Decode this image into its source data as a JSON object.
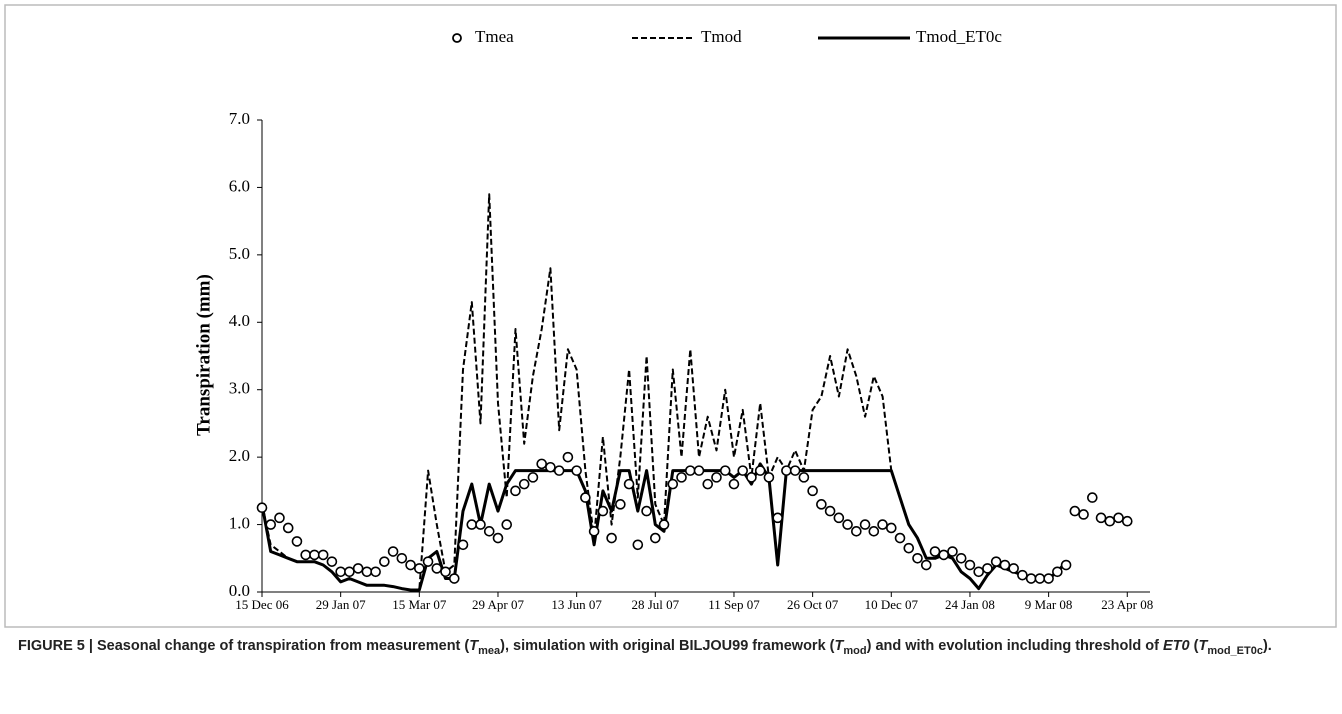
{
  "chart_data": {
    "type": "line",
    "y_label": "Transpiration (mm)",
    "x": [
      "2006-12-15",
      "2006-12-20",
      "2006-12-25",
      "2006-12-30",
      "2007-01-04",
      "2007-01-09",
      "2007-01-14",
      "2007-01-19",
      "2007-01-24",
      "2007-01-29",
      "2007-02-03",
      "2007-02-08",
      "2007-02-13",
      "2007-02-18",
      "2007-02-23",
      "2007-02-28",
      "2007-03-05",
      "2007-03-10",
      "2007-03-15",
      "2007-03-20",
      "2007-03-25",
      "2007-03-30",
      "2007-04-04",
      "2007-04-09",
      "2007-04-14",
      "2007-04-19",
      "2007-04-24",
      "2007-04-29",
      "2007-05-04",
      "2007-05-09",
      "2007-05-14",
      "2007-05-19",
      "2007-05-24",
      "2007-05-29",
      "2007-06-03",
      "2007-06-08",
      "2007-06-13",
      "2007-06-18",
      "2007-06-23",
      "2007-06-28",
      "2007-07-03",
      "2007-07-08",
      "2007-07-13",
      "2007-07-18",
      "2007-07-23",
      "2007-07-28",
      "2007-08-02",
      "2007-08-07",
      "2007-08-12",
      "2007-08-17",
      "2007-08-22",
      "2007-08-27",
      "2007-09-01",
      "2007-09-06",
      "2007-09-11",
      "2007-09-16",
      "2007-09-21",
      "2007-09-26",
      "2007-10-01",
      "2007-10-06",
      "2007-10-11",
      "2007-10-16",
      "2007-10-21",
      "2007-10-26",
      "2007-10-31",
      "2007-11-05",
      "2007-11-10",
      "2007-11-15",
      "2007-11-20",
      "2007-11-25",
      "2007-11-30",
      "2007-12-05",
      "2007-12-10",
      "2007-12-15",
      "2007-12-20",
      "2007-12-25",
      "2007-12-30",
      "2008-01-04",
      "2008-01-09",
      "2008-01-14",
      "2008-01-19",
      "2008-01-24",
      "2008-01-29",
      "2008-02-03",
      "2008-02-08",
      "2008-02-13",
      "2008-02-18",
      "2008-02-23",
      "2008-02-28",
      "2008-03-04",
      "2008-03-09",
      "2008-03-14",
      "2008-03-19",
      "2008-03-24",
      "2008-03-29",
      "2008-04-03",
      "2008-04-08",
      "2008-04-13",
      "2008-04-18",
      "2008-04-23"
    ],
    "series": [
      {
        "name": "Tmea",
        "color": "#000000",
        "marker": "circle",
        "line": "none",
        "values": [
          1.25,
          1.0,
          1.1,
          0.95,
          0.75,
          0.55,
          0.55,
          0.55,
          0.45,
          0.3,
          0.3,
          0.35,
          0.3,
          0.3,
          0.45,
          0.6,
          0.5,
          0.4,
          0.35,
          0.45,
          0.35,
          0.3,
          0.2,
          0.7,
          1.0,
          1.0,
          0.9,
          0.8,
          1.0,
          1.5,
          1.6,
          1.7,
          1.9,
          1.85,
          1.8,
          2.0,
          1.8,
          1.4,
          0.9,
          1.2,
          0.8,
          1.3,
          1.6,
          0.7,
          1.2,
          0.8,
          1.0,
          1.6,
          1.7,
          1.8,
          1.8,
          1.6,
          1.7,
          1.8,
          1.6,
          1.8,
          1.7,
          1.8,
          1.7,
          1.1,
          1.8,
          1.8,
          1.7,
          1.5,
          1.3,
          1.2,
          1.1,
          1.0,
          0.9,
          1.0,
          0.9,
          1.0,
          0.95,
          0.8,
          0.65,
          0.5,
          0.4,
          0.6,
          0.55,
          0.6,
          0.5,
          0.4,
          0.3,
          0.35,
          0.45,
          0.4,
          0.35,
          0.25,
          0.2,
          0.2,
          0.2,
          0.3,
          0.4,
          1.2,
          1.15,
          1.4,
          1.1,
          1.05,
          1.1,
          1.05
        ]
      },
      {
        "name": "Tmod",
        "color": "#000000",
        "marker": "none",
        "line": "dashed",
        "values": [
          1.3,
          0.7,
          0.6,
          0.5,
          0.45,
          0.45,
          0.45,
          0.4,
          0.3,
          0.15,
          0.2,
          0.15,
          0.1,
          0.1,
          0.1,
          0.08,
          0.05,
          0.03,
          0.03,
          1.8,
          1.0,
          0.3,
          0.4,
          3.3,
          4.3,
          2.5,
          5.9,
          2.8,
          1.4,
          3.9,
          2.2,
          3.2,
          3.9,
          4.8,
          2.4,
          3.6,
          3.3,
          1.8,
          0.8,
          2.3,
          1.0,
          2.0,
          3.3,
          1.4,
          3.5,
          1.3,
          1.0,
          3.3,
          2.0,
          3.6,
          2.0,
          2.6,
          2.1,
          3.0,
          2.0,
          2.7,
          1.7,
          2.8,
          1.7,
          2.0,
          1.8,
          2.1,
          1.8,
          2.7,
          2.9,
          3.5,
          2.9,
          3.6,
          3.2,
          2.6,
          3.2,
          2.9,
          1.8,
          1.4,
          1.0,
          0.8,
          0.5,
          0.5,
          0.55,
          0.5,
          0.3,
          0.2,
          0.05,
          0.25,
          0.4,
          0.35,
          0.3,
          0.25,
          0.2,
          0.2,
          0.2,
          0.3,
          0.45,
          null,
          null,
          null,
          null,
          null,
          null,
          null
        ]
      },
      {
        "name": "Tmod_ET0c",
        "color": "#000000",
        "marker": "none",
        "line": "solid",
        "values": [
          1.3,
          0.6,
          0.55,
          0.5,
          0.45,
          0.45,
          0.45,
          0.4,
          0.3,
          0.15,
          0.2,
          0.15,
          0.1,
          0.1,
          0.1,
          0.08,
          0.05,
          0.03,
          0.03,
          0.5,
          0.6,
          0.2,
          0.2,
          1.2,
          1.6,
          1.0,
          1.6,
          1.2,
          1.6,
          1.8,
          1.8,
          1.8,
          1.8,
          1.8,
          1.8,
          1.8,
          1.8,
          1.5,
          0.7,
          1.5,
          1.2,
          1.8,
          1.8,
          1.2,
          1.8,
          1.0,
          0.9,
          1.8,
          1.8,
          1.8,
          1.8,
          1.8,
          1.8,
          1.8,
          1.7,
          1.8,
          1.6,
          1.9,
          1.7,
          0.4,
          1.8,
          1.8,
          1.8,
          1.8,
          1.8,
          1.8,
          1.8,
          1.8,
          1.8,
          1.8,
          1.8,
          1.8,
          1.8,
          1.4,
          1.0,
          0.8,
          0.5,
          0.5,
          0.55,
          0.5,
          0.3,
          0.2,
          0.05,
          0.25,
          0.4,
          0.35,
          0.3,
          0.25,
          0.2,
          0.2,
          0.2,
          0.3,
          0.45,
          null,
          null,
          null,
          null,
          null,
          null,
          null
        ]
      }
    ],
    "xlim": [
      "2006-12-15",
      "2008-05-06"
    ],
    "xticks": [
      {
        "value": "2006-12-15",
        "label": "15 Dec 06"
      },
      {
        "value": "2007-01-29",
        "label": "29 Jan 07"
      },
      {
        "value": "2007-03-15",
        "label": "15 Mar 07"
      },
      {
        "value": "2007-04-29",
        "label": "29 Apr 07"
      },
      {
        "value": "2007-06-13",
        "label": "13 Jun 07"
      },
      {
        "value": "2007-07-28",
        "label": "28 Jul 07"
      },
      {
        "value": "2007-09-11",
        "label": "11 Sep 07"
      },
      {
        "value": "2007-10-26",
        "label": "26 Oct 07"
      },
      {
        "value": "2007-12-10",
        "label": "10 Dec 07"
      },
      {
        "value": "2008-01-24",
        "label": "24 Jan 08"
      },
      {
        "value": "2008-03-09",
        "label": "9 Mar 08"
      },
      {
        "value": "2008-04-23",
        "label": "23 Apr 08"
      }
    ],
    "ylim": [
      0,
      7
    ],
    "yticks": [
      {
        "value": 0,
        "label": "0.0"
      },
      {
        "value": 1,
        "label": "1.0"
      },
      {
        "value": 2,
        "label": "2.0"
      },
      {
        "value": 3,
        "label": "3.0"
      },
      {
        "value": 4,
        "label": "4.0"
      },
      {
        "value": 5,
        "label": "5.0"
      },
      {
        "value": 6,
        "label": "6.0"
      },
      {
        "value": 7,
        "label": "7.0"
      }
    ],
    "grid": false,
    "legend": "top"
  },
  "caption": [
    "FIGURE 5 | Seasonal change of transpiration from measurement (",
    "T",
    "mea",
    "), simulation with original BILJOU99 framework (",
    "T",
    "mod",
    ") and with evolution including threshold of ",
    "ET0",
    " (",
    "T",
    "mod_ET0c",
    ")."
  ]
}
